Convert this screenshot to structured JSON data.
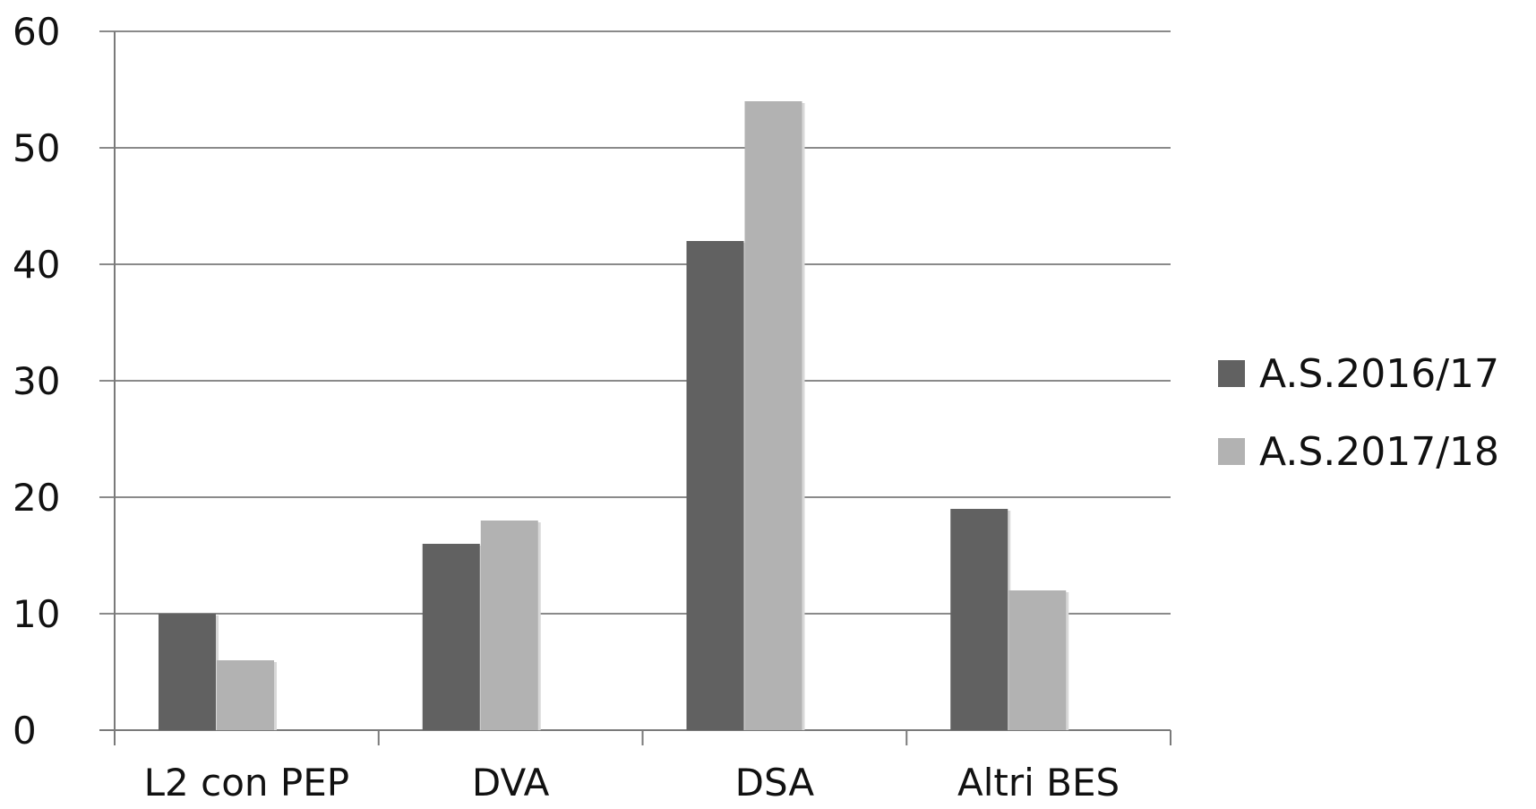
{
  "chart_data": {
    "type": "bar",
    "title": "",
    "xlabel": "",
    "ylabel": "",
    "categories": [
      "L2 con PEP",
      "DVA",
      "DSA",
      "Altri BES"
    ],
    "series": [
      {
        "name": "A.S.2016/17",
        "values": [
          10,
          16,
          42,
          19
        ],
        "color": "#616161"
      },
      {
        "name": "A.S.2017/18",
        "values": [
          6,
          18,
          54,
          12
        ],
        "color": "#b2b2b2"
      }
    ],
    "ylim": [
      0,
      60
    ],
    "yticks": [
      "0",
      "10",
      "20",
      "30",
      "40",
      "50",
      "60"
    ],
    "grid": true,
    "legend_position": "right"
  }
}
